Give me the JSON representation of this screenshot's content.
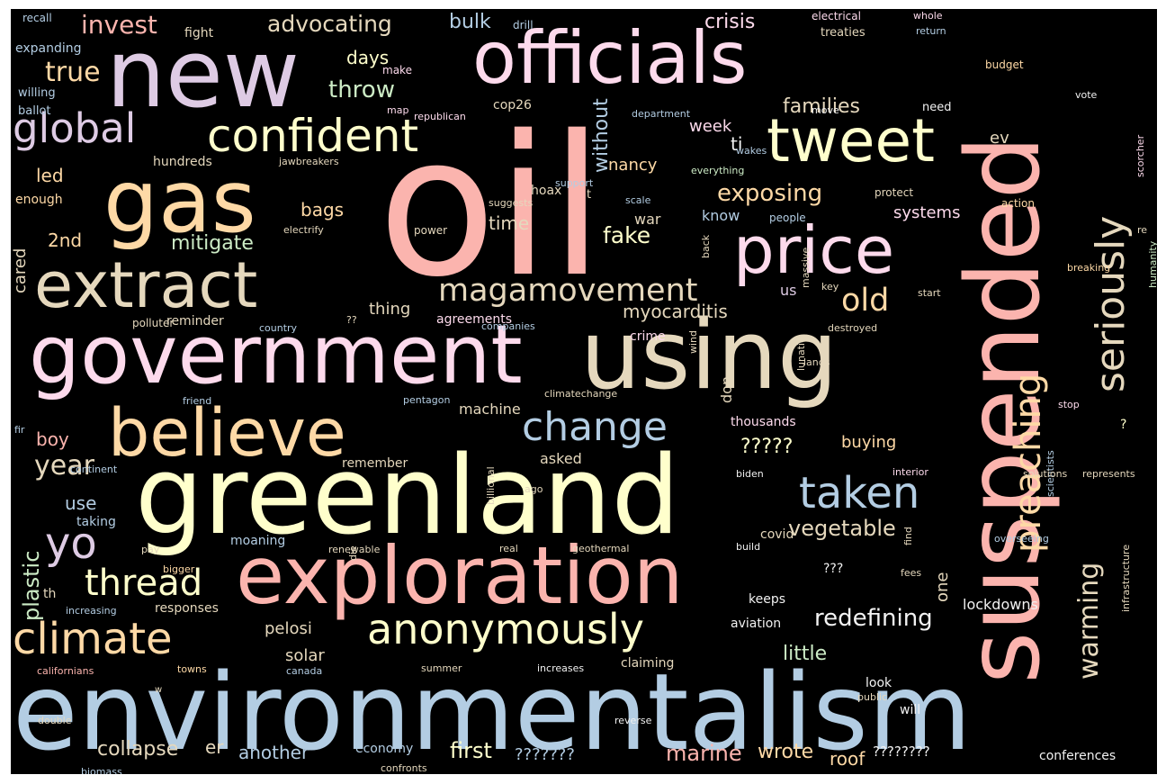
{
  "words": [
    {
      "text": "oil",
      "color": "#fbb4ae"
    },
    {
      "text": "environmentalism",
      "color": "#b3cde3"
    },
    {
      "text": "greenland",
      "color": "#ffffcc"
    },
    {
      "text": "government",
      "color": "#fddaec"
    },
    {
      "text": "using",
      "color": "#e5d8bd"
    },
    {
      "text": "officials",
      "color": "#fddaec"
    },
    {
      "text": "new",
      "color": "#decbe4"
    },
    {
      "text": "gas",
      "color": "#fed9a6"
    },
    {
      "text": "suspended",
      "color": "#fbb4ae"
    },
    {
      "text": "exploration",
      "color": "#fbb4ae"
    },
    {
      "text": "believe",
      "color": "#fed9a6"
    },
    {
      "text": "extract",
      "color": "#e5d8bd"
    },
    {
      "text": "price",
      "color": "#fddaec"
    },
    {
      "text": "tweet",
      "color": "#ffffcc"
    },
    {
      "text": "confident",
      "color": "#ffffcc"
    },
    {
      "text": "global",
      "color": "#decbe4"
    },
    {
      "text": "climate",
      "color": "#fed9a6"
    },
    {
      "text": "anonymously",
      "color": "#ffffcc"
    },
    {
      "text": "taken",
      "color": "#b3cde3"
    },
    {
      "text": "change",
      "color": "#b3cde3"
    },
    {
      "text": "preaching",
      "color": "#fed9a6"
    },
    {
      "text": "seriously",
      "color": "#e5d8bd"
    },
    {
      "text": "yo",
      "color": "#decbe4"
    },
    {
      "text": "thread",
      "color": "#ffffcc"
    },
    {
      "text": "magamovement",
      "color": "#e5d8bd"
    },
    {
      "text": "warming",
      "color": "#e5d8bd"
    },
    {
      "text": "year",
      "color": "#e5d8bd"
    },
    {
      "text": "redefining",
      "color": "#f2f2f2"
    },
    {
      "text": "old",
      "color": "#fed9a6"
    },
    {
      "text": "exposing",
      "color": "#fed9a6"
    },
    {
      "text": "vegetable",
      "color": "#e5d8bd"
    },
    {
      "text": "advocating",
      "color": "#e5d8bd"
    },
    {
      "text": "fake",
      "color": "#ffffcc"
    },
    {
      "text": "invest",
      "color": "#fbb4ae"
    },
    {
      "text": "families",
      "color": "#e5d8bd"
    },
    {
      "text": "crisis",
      "color": "#fddaec"
    },
    {
      "text": "myocarditis",
      "color": "#e5d8bd"
    },
    {
      "text": "mitigate",
      "color": "#ccebc5"
    },
    {
      "text": "plastic",
      "color": "#ccebc5"
    },
    {
      "text": "true",
      "color": "#fed9a6"
    },
    {
      "text": "throw",
      "color": "#ccebc5"
    },
    {
      "text": "bulk",
      "color": "#b3cde3"
    },
    {
      "text": "days",
      "color": "#ffffcc"
    },
    {
      "text": "time",
      "color": "#e5d8bd"
    },
    {
      "text": "2nd",
      "color": "#fed9a6"
    },
    {
      "text": "bags",
      "color": "#fed9a6"
    },
    {
      "text": "week",
      "color": "#fddaec"
    },
    {
      "text": "ti",
      "color": "#f2f2f2"
    },
    {
      "text": "without",
      "color": "#b3cde3"
    },
    {
      "text": "nancy",
      "color": "#fed9a6"
    },
    {
      "text": "systems",
      "color": "#fddaec"
    },
    {
      "text": "buying",
      "color": "#fed9a6"
    },
    {
      "text": "one",
      "color": "#e5d8bd"
    },
    {
      "text": "little",
      "color": "#ccebc5"
    },
    {
      "text": "solar",
      "color": "#e5d8bd"
    },
    {
      "text": "pelosi",
      "color": "#e5d8bd"
    },
    {
      "text": "another",
      "color": "#b3cde3"
    },
    {
      "text": "first",
      "color": "#ffffcc"
    },
    {
      "text": "marine",
      "color": "#fbb4ae"
    },
    {
      "text": "wrote",
      "color": "#fed9a6"
    },
    {
      "text": "roof",
      "color": "#fed9a6"
    },
    {
      "text": "collapse",
      "color": "#e5d8bd"
    },
    {
      "text": "er",
      "color": "#e5d8bd"
    },
    {
      "text": "use",
      "color": "#b3cde3"
    },
    {
      "text": "boy",
      "color": "#fbb4ae"
    },
    {
      "text": "led",
      "color": "#fed9a6"
    },
    {
      "text": "cared",
      "color": "#e5d8bd"
    },
    {
      "text": "know",
      "color": "#b3cde3"
    },
    {
      "text": "war",
      "color": "#e5d8bd"
    },
    {
      "text": "ev",
      "color": "#e5d8bd"
    },
    {
      "text": "thing",
      "color": "#e5d8bd"
    },
    {
      "text": "us",
      "color": "#decbe4"
    },
    {
      "text": "lockdowns",
      "color": "#f2f2f2"
    },
    {
      "text": "don",
      "color": "#e5d8bd"
    },
    {
      "text": "thousands",
      "color": "#fddaec"
    },
    {
      "text": "crime",
      "color": "#fddaec"
    },
    {
      "text": "machine",
      "color": "#e5d8bd"
    },
    {
      "text": "asked",
      "color": "#e5d8bd"
    },
    {
      "text": "claiming",
      "color": "#e5d8bd"
    },
    {
      "text": "reminder",
      "color": "#e5d8bd"
    },
    {
      "text": "agreements",
      "color": "#fddaec"
    },
    {
      "text": "conferences",
      "color": "#f2f2f2"
    },
    {
      "text": "economy",
      "color": "#b3cde3"
    },
    {
      "text": "remember",
      "color": "#e5d8bd"
    },
    {
      "text": "moaning",
      "color": "#b3cde3"
    },
    {
      "text": "responses",
      "color": "#e5d8bd"
    },
    {
      "text": "aviation",
      "color": "#f2f2f2"
    },
    {
      "text": "covid",
      "color": "#e5d8bd"
    },
    {
      "text": "keeps",
      "color": "#f2f2f2"
    },
    {
      "text": "look",
      "color": "#f2f2f2"
    },
    {
      "text": "will",
      "color": "#f2f2f2"
    },
    {
      "text": "taking",
      "color": "#b3cde3"
    },
    {
      "text": "th",
      "color": "#e5d8bd"
    },
    {
      "text": "cop26",
      "color": "#e5d8bd"
    },
    {
      "text": "hoax",
      "color": "#e5d8bd"
    },
    {
      "text": "t",
      "color": "#e5d8bd"
    },
    {
      "text": "hundreds",
      "color": "#e5d8bd"
    },
    {
      "text": "enough",
      "color": "#fed9a6"
    },
    {
      "text": "fight",
      "color": "#e5d8bd"
    },
    {
      "text": "expanding",
      "color": "#b3cde3"
    },
    {
      "text": "willing",
      "color": "#b3cde3"
    },
    {
      "text": "ballot",
      "color": "#b3cde3"
    },
    {
      "text": "recall",
      "color": "#b3cde3"
    },
    {
      "text": "drill",
      "color": "#b3cde3"
    },
    {
      "text": "make",
      "color": "#fddaec"
    },
    {
      "text": "map",
      "color": "#fddaec"
    },
    {
      "text": "republican",
      "color": "#fddaec"
    },
    {
      "text": "electrical",
      "color": "#fddaec"
    },
    {
      "text": "whole",
      "color": "#fddaec"
    },
    {
      "text": "return",
      "color": "#b3cde3"
    },
    {
      "text": "treaties",
      "color": "#e5d8bd"
    },
    {
      "text": "budget",
      "color": "#fed9a6"
    },
    {
      "text": "vote",
      "color": "#f2f2f2"
    },
    {
      "text": "need",
      "color": "#f2f2f2"
    },
    {
      "text": "move",
      "color": "#f2f2f2"
    },
    {
      "text": "department",
      "color": "#b3cde3"
    },
    {
      "text": "everything",
      "color": "#ccebc5"
    },
    {
      "text": "wakes",
      "color": "#b3cde3"
    },
    {
      "text": "jawbreakers",
      "color": "#e5d8bd"
    },
    {
      "text": "support",
      "color": "#b3cde3"
    },
    {
      "text": "suggests",
      "color": "#e5d8bd"
    },
    {
      "text": "scale",
      "color": "#b3cde3"
    },
    {
      "text": "protect",
      "color": "#e5d8bd"
    },
    {
      "text": "action",
      "color": "#fed9a6"
    },
    {
      "text": "people",
      "color": "#b3cde3"
    },
    {
      "text": "power",
      "color": "#e5d8bd"
    },
    {
      "text": "electrify",
      "color": "#e5d8bd"
    },
    {
      "text": "back",
      "color": "#e5d8bd"
    },
    {
      "text": "massive",
      "color": "#e5d8bd"
    },
    {
      "text": "key",
      "color": "#e5d8bd"
    },
    {
      "text": "start",
      "color": "#e5d8bd"
    },
    {
      "text": "breaking",
      "color": "#fed9a6"
    },
    {
      "text": "humanity",
      "color": "#ccebc5"
    },
    {
      "text": "re",
      "color": "#e5d8bd"
    },
    {
      "text": "scorcher",
      "color": "#fddaec"
    },
    {
      "text": "polluter",
      "color": "#e5d8bd"
    },
    {
      "text": "country",
      "color": "#b3cde3"
    },
    {
      "text": "companies",
      "color": "#b3cde3"
    },
    {
      "text": "destroyed",
      "color": "#e5d8bd"
    },
    {
      "text": "lunatic",
      "color": "#e5d8bd"
    },
    {
      "text": "wind",
      "color": "#e5d8bd"
    },
    {
      "text": "lands",
      "color": "#e5d8bd"
    },
    {
      "text": "friend",
      "color": "#b3cde3"
    },
    {
      "text": "pentagon",
      "color": "#b3cde3"
    },
    {
      "text": "climatechange",
      "color": "#e5d8bd"
    },
    {
      "text": "stop",
      "color": "#fddaec"
    },
    {
      "text": "fir",
      "color": "#b3cde3"
    },
    {
      "text": "continent",
      "color": "#b3cde3"
    },
    {
      "text": "billional",
      "color": "#e5d8bd"
    },
    {
      "text": "ago",
      "color": "#e5d8bd"
    },
    {
      "text": "biden",
      "color": "#f2f2f2"
    },
    {
      "text": "interior",
      "color": "#fddaec"
    },
    {
      "text": "scientists",
      "color": "#b3cde3"
    },
    {
      "text": "solutions",
      "color": "#e5d8bd"
    },
    {
      "text": "represents",
      "color": "#e5d8bd"
    },
    {
      "text": "overseeing",
      "color": "#b3cde3"
    },
    {
      "text": "infrastructure",
      "color": "#e5d8bd"
    },
    {
      "text": "find",
      "color": "#e5d8bd"
    },
    {
      "text": "fees",
      "color": "#e5d8bd"
    },
    {
      "text": "pay",
      "color": "#e5d8bd"
    },
    {
      "text": "bigger",
      "color": "#fed9a6"
    },
    {
      "text": "renewable",
      "color": "#e5d8bd"
    },
    {
      "text": "die",
      "color": "#e5d8bd"
    },
    {
      "text": "real",
      "color": "#e5d8bd"
    },
    {
      "text": "geothermal",
      "color": "#e5d8bd"
    },
    {
      "text": "build",
      "color": "#f2f2f2"
    },
    {
      "text": "increasing",
      "color": "#b3cde3"
    },
    {
      "text": "californians",
      "color": "#fbb4ae"
    },
    {
      "text": "towns",
      "color": "#fed9a6"
    },
    {
      "text": "canada",
      "color": "#b3cde3"
    },
    {
      "text": "summer",
      "color": "#e5d8bd"
    },
    {
      "text": "increases",
      "color": "#f2f2f2"
    },
    {
      "text": "double",
      "color": "#e5d8bd"
    },
    {
      "text": "w",
      "color": "#e5d8bd"
    },
    {
      "text": "reverse",
      "color": "#f2f2f2"
    },
    {
      "text": "public",
      "color": "#e5d8bd"
    },
    {
      "text": "biomass",
      "color": "#b3cde3"
    },
    {
      "text": "confronts",
      "color": "#e5d8bd"
    },
    {
      "text": "????????",
      "color": "#f2f2f2"
    },
    {
      "text": "???????",
      "color": "#b3cde3"
    },
    {
      "text": "?????",
      "color": "#ffffcc"
    },
    {
      "text": "???",
      "color": "#f2f2f2"
    },
    {
      "text": "??",
      "color": "#e5d8bd"
    },
    {
      "text": "?",
      "color": "#ffffcc"
    }
  ]
}
